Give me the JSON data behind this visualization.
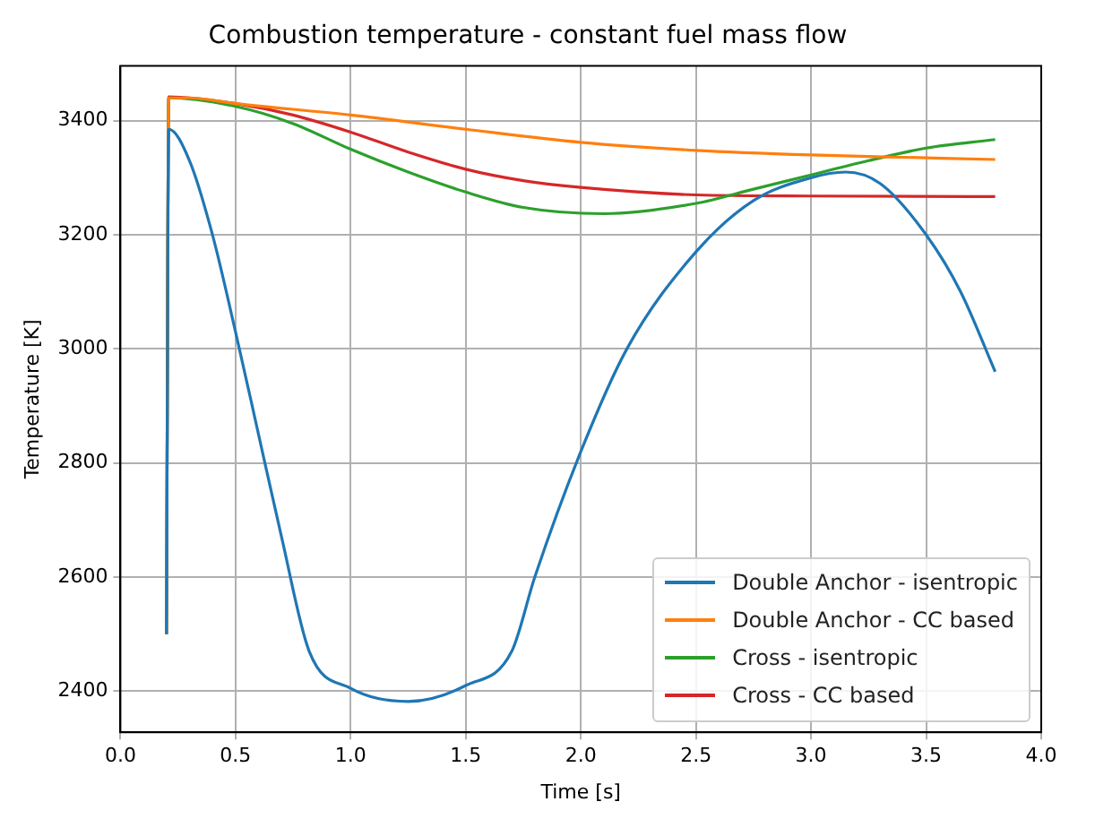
{
  "chart_data": {
    "type": "line",
    "title": "Combustion temperature - constant fuel mass flow",
    "xlabel": "Time [s]",
    "ylabel": "Temperature [K]",
    "xlim": [
      0,
      4.0
    ],
    "xticks": [
      {
        "value": 0,
        "label": "0.0"
      },
      0.5,
      {
        "value": 1,
        "label": "1.0"
      },
      1.5,
      {
        "value": 2,
        "label": "2.0"
      },
      2.5,
      {
        "value": 3,
        "label": "3.0"
      },
      3.5,
      {
        "value": 4,
        "label": "4.0"
      }
    ],
    "ylim": [
      2328,
      3496
    ],
    "yticks": [
      2400,
      2600,
      2800,
      3000,
      3200,
      3400
    ],
    "grid": true,
    "legend": "bottom right",
    "marker": "none",
    "line_style": "solid",
    "series": [
      {
        "name": "Double Anchor - isentropic",
        "color": "#1f77b4",
        "x": [
          0.2,
          0.21,
          0.3,
          0.4,
          0.5,
          0.6,
          0.7,
          0.82,
          1.0,
          1.25,
          1.5,
          1.7,
          1.8,
          2.0,
          2.2,
          2.5,
          2.75,
          3.0,
          3.15,
          3.3,
          3.5,
          3.65,
          3.8
        ],
        "values": [
          2500,
          3385,
          3330,
          3200,
          3030,
          2850,
          2670,
          2470,
          2405,
          2382,
          2410,
          2470,
          2600,
          2820,
          3000,
          3170,
          3260,
          3300,
          3310,
          3290,
          3200,
          3100,
          2960
        ]
      },
      {
        "name": "Double Anchor - CC based",
        "color": "#ff7f0e",
        "x": [
          0.2,
          0.21,
          0.3,
          0.5,
          1.0,
          1.5,
          2.0,
          2.5,
          3.0,
          3.5,
          3.8
        ],
        "values": [
          2500,
          3440,
          3440,
          3430,
          3410,
          3385,
          3362,
          3348,
          3340,
          3335,
          3332
        ]
      },
      {
        "name": "Cross - isentropic",
        "color": "#2ca02c",
        "x": [
          0.2,
          0.21,
          0.5,
          0.75,
          1.0,
          1.25,
          1.5,
          1.75,
          2.1,
          2.5,
          2.75,
          3.0,
          3.25,
          3.5,
          3.8
        ],
        "values": [
          2500,
          3440,
          3425,
          3395,
          3350,
          3310,
          3275,
          3248,
          3237,
          3255,
          3280,
          3305,
          3330,
          3352,
          3367
        ]
      },
      {
        "name": "Cross - CC based",
        "color": "#d62728",
        "x": [
          0.2,
          0.21,
          0.5,
          0.75,
          1.0,
          1.25,
          1.5,
          1.75,
          2.0,
          2.5,
          3.0,
          3.8
        ],
        "values": [
          2500,
          3442,
          3430,
          3410,
          3380,
          3345,
          3315,
          3295,
          3283,
          3270,
          3268,
          3267
        ]
      }
    ]
  }
}
